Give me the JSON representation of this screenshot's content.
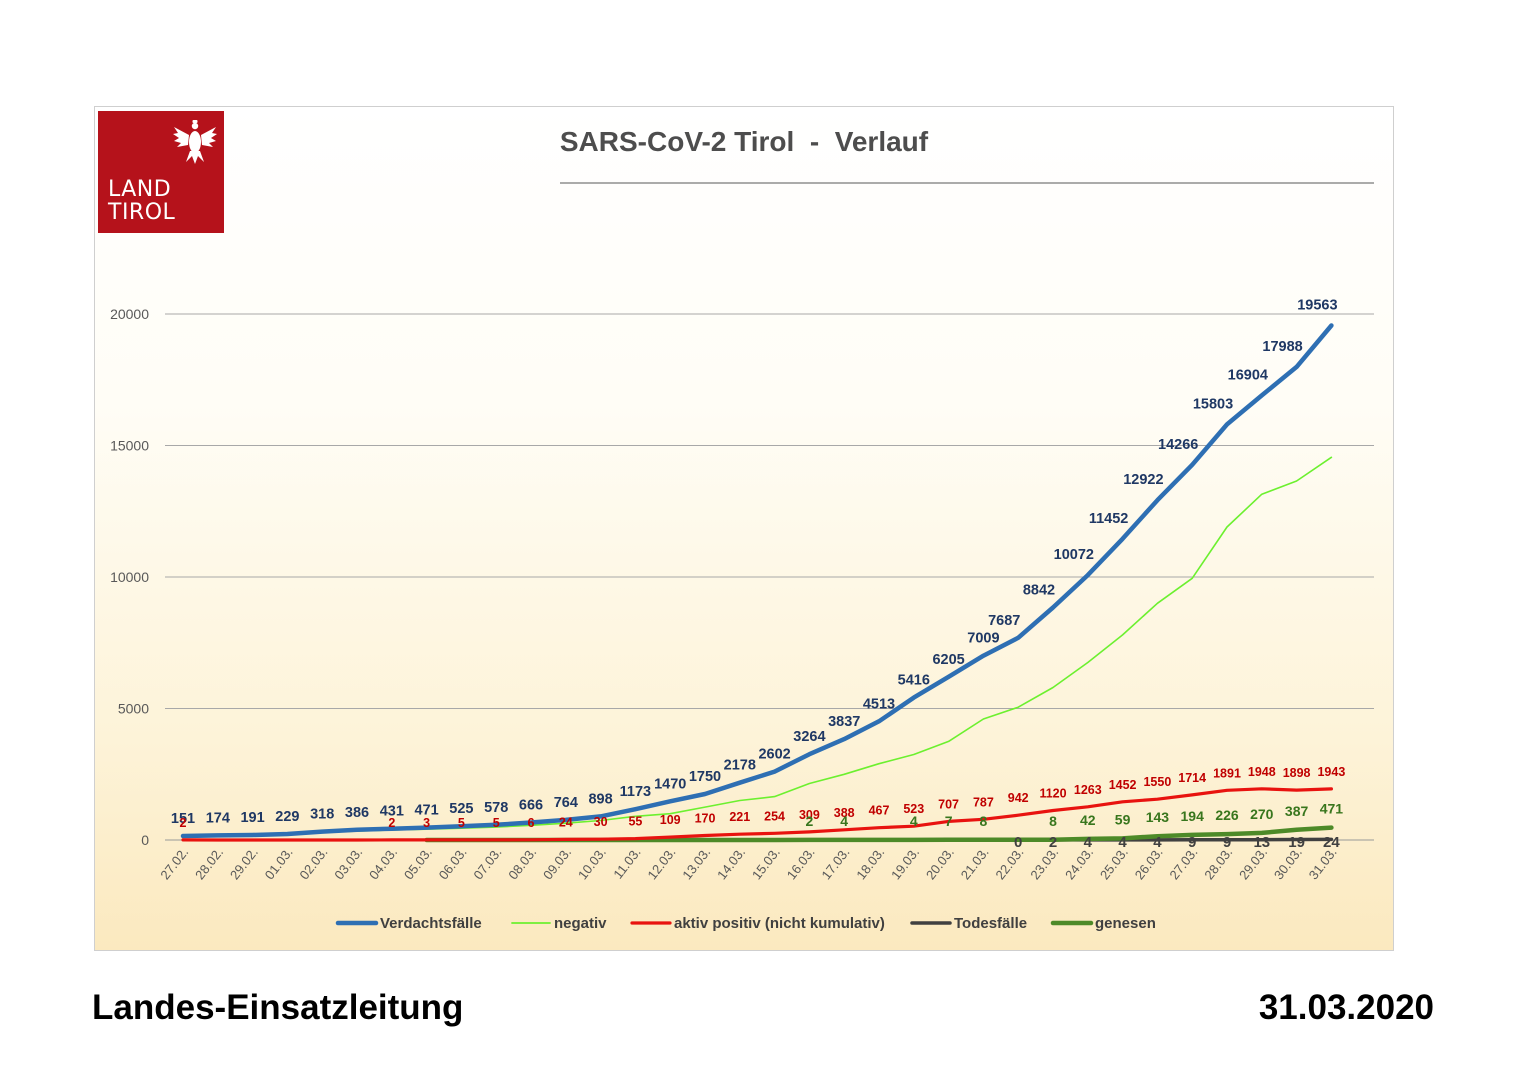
{
  "logo": {
    "line1": "LAND",
    "line2": "TIROL"
  },
  "footer": {
    "left": "Landes-Einsatzleitung",
    "right": "31.03.2020"
  },
  "colors": {
    "suspected": "#2e6fb3",
    "negative": "#6cf02f",
    "active": "#e8130f",
    "deaths": "#404040",
    "recovered": "#4d8a28",
    "brand": "#b5121b"
  },
  "chart_data": {
    "type": "line",
    "title": "SARS-CoV-2 Tirol  -  Verlauf",
    "ylim": [
      0,
      20000
    ],
    "yticks": [
      "0",
      "5000",
      "10000",
      "15000",
      "20000"
    ],
    "grid": true,
    "legend_position": "bottom",
    "categories": [
      "27.02.",
      "28.02.",
      "29.02.",
      "01.03.",
      "02.03.",
      "03.03.",
      "04.03.",
      "05.03.",
      "06.03.",
      "07.03.",
      "08.03.",
      "09.03.",
      "10.03.",
      "11.03.",
      "12.03.",
      "13.03.",
      "14.03.",
      "15.03.",
      "16.03.",
      "17.03.",
      "18.03.",
      "19.03.",
      "20.03.",
      "21.03.",
      "22.03.",
      "23.03.",
      "24.03.",
      "25.03.",
      "26.03.",
      "27.03.",
      "28.03.",
      "29.03.",
      "30.03.",
      "31.03."
    ],
    "series": [
      {
        "name": "Verdachtsfälle",
        "values": [
          151,
          174,
          191,
          229,
          318,
          386,
          431,
          471,
          525,
          578,
          666,
          764,
          898,
          1173,
          1470,
          1750,
          2178,
          2602,
          3264,
          3837,
          4513,
          5416,
          6205,
          7009,
          7687,
          8842,
          10072,
          11452,
          12922,
          14266,
          15803,
          16904,
          17988,
          19563
        ],
        "labels": [
          "151",
          "174",
          "191",
          "229",
          "318",
          "386",
          "431",
          "471",
          "525",
          "578",
          "666",
          "764",
          "898",
          "1173",
          "1470",
          "1750",
          "2178",
          "2602",
          "3264",
          "3837",
          "4513",
          "5416",
          "6205",
          "7009",
          "7687",
          "8842",
          "10072",
          "11452",
          "12922",
          "14266",
          "15803",
          "16904",
          "17988",
          "19563"
        ]
      },
      {
        "name": "negativ",
        "values": [
          145,
          165,
          180,
          210,
          290,
          340,
          380,
          410,
          450,
          490,
          560,
          640,
          740,
          900,
          1000,
          1250,
          1500,
          1650,
          2150,
          2500,
          2900,
          3250,
          3750,
          4600,
          5050,
          5800,
          6750,
          7800,
          9000,
          9950,
          11900,
          13150,
          13650,
          14550
        ],
        "labels": []
      },
      {
        "name": "aktiv positiv (nicht kumulativ)",
        "values": [
          2,
          0,
          0,
          0,
          0,
          0,
          2,
          3,
          5,
          5,
          6,
          24,
          30,
          55,
          109,
          170,
          221,
          254,
          309,
          388,
          467,
          523,
          707,
          787,
          942,
          1120,
          1263,
          1452,
          1550,
          1714,
          1891,
          1948,
          1898,
          1943
        ],
        "labels": [
          "2",
          "",
          "",
          "",
          "",
          "",
          "2",
          "3",
          "5",
          "5",
          "6",
          "24",
          "30",
          "55",
          "109",
          "170",
          "221",
          "254",
          "309",
          "388",
          "467",
          "523",
          "707",
          "787",
          "942",
          "1120",
          "1263",
          "1452",
          "1550",
          "1714",
          "1891",
          "1948",
          "1898",
          "1943"
        ]
      },
      {
        "name": "Todesfälle",
        "values": [
          null,
          null,
          null,
          null,
          null,
          null,
          null,
          null,
          null,
          null,
          null,
          null,
          null,
          null,
          null,
          null,
          null,
          null,
          null,
          null,
          null,
          null,
          null,
          null,
          0,
          2,
          4,
          4,
          4,
          9,
          9,
          13,
          19,
          24
        ],
        "labels": [
          "",
          "",
          "",
          "",
          "",
          "",
          "",
          "",
          "",
          "",
          "",
          "",
          "",
          "",
          "",
          "",
          "",
          "",
          "",
          "",
          "",
          "",
          "",
          "",
          "0",
          "2",
          "4",
          "4",
          "4",
          "9",
          "9",
          "13",
          "19",
          "24"
        ]
      },
      {
        "name": "genesen",
        "values": [
          null,
          null,
          null,
          null,
          null,
          null,
          null,
          0,
          0,
          0,
          0,
          0,
          0,
          0,
          0,
          0,
          0,
          0,
          2,
          4,
          4,
          4,
          7,
          8,
          8,
          8,
          42,
          59,
          143,
          194,
          226,
          270,
          387,
          471
        ],
        "labels": [
          "",
          "",
          "",
          "",
          "",
          "",
          "",
          "",
          "",
          "",
          "",
          "",
          "",
          "",
          "",
          "",
          "",
          "",
          "2",
          "4",
          "",
          "4",
          "7",
          "8",
          "",
          "8",
          "42",
          "59",
          "143",
          "194",
          "226",
          "270",
          "387",
          "471"
        ]
      }
    ]
  }
}
